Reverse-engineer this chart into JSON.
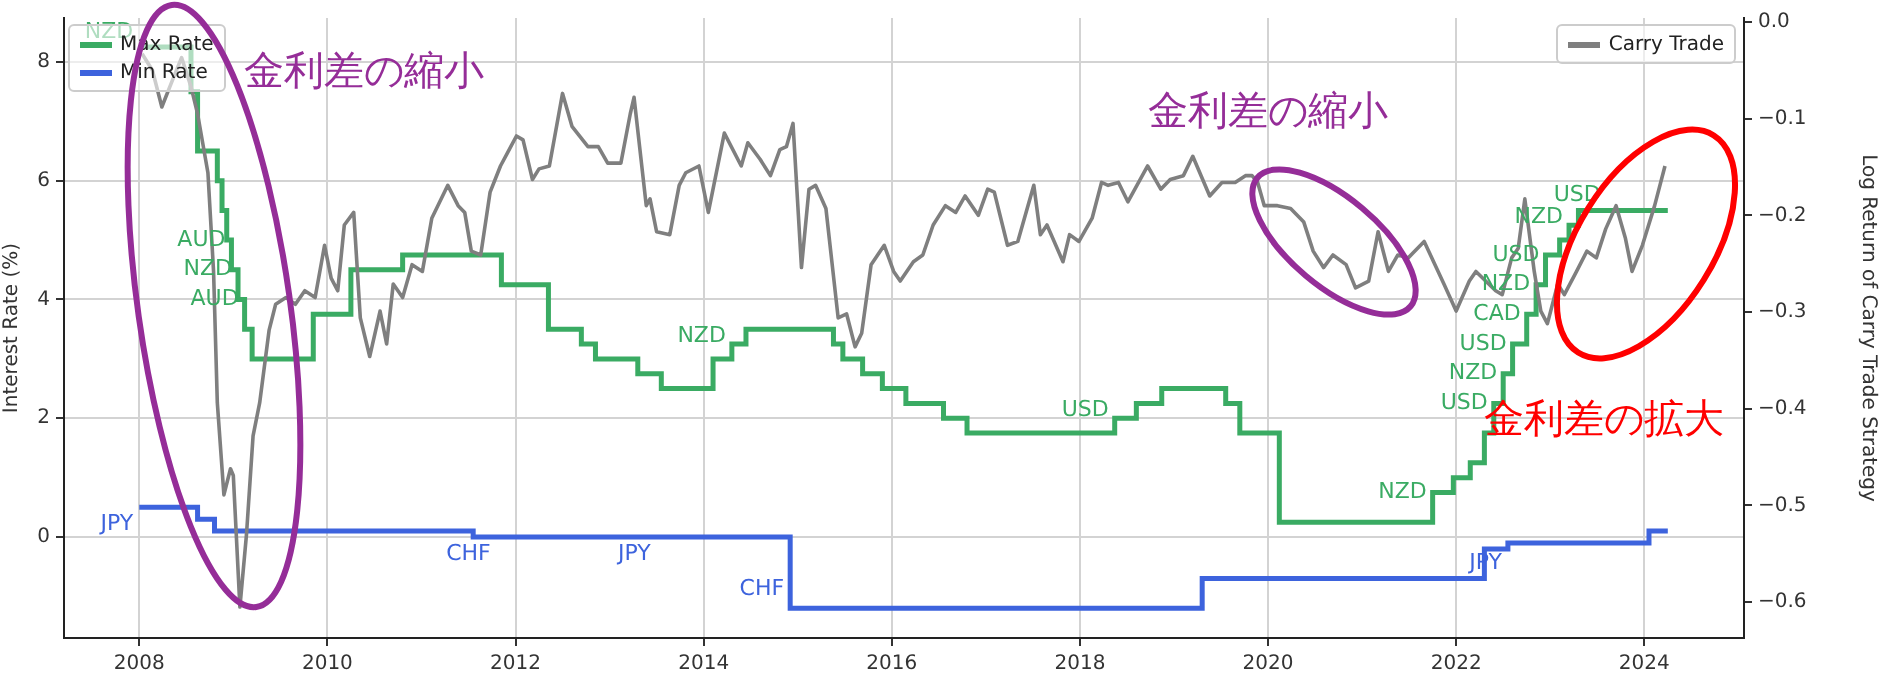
{
  "chart_data": {
    "type": "step",
    "ylabel": "Interest Rate (%)",
    "y2label": "Log Return of Carry Trade Strategy",
    "x": [
      2008.0,
      2008.55,
      2008.62,
      2008.8,
      2008.83,
      2008.88,
      2008.93,
      2008.98,
      2009.05,
      2009.12,
      2009.2,
      2009.85,
      2010.25,
      2010.8,
      2011.55,
      2011.85,
      2012.35,
      2012.7,
      2012.85,
      2013.3,
      2013.55,
      2014.1,
      2014.3,
      2014.45,
      2014.92,
      2015.38,
      2015.48,
      2015.69,
      2015.9,
      2016.15,
      2016.55,
      2016.8,
      2018.37,
      2018.6,
      2018.87,
      2019.3,
      2019.55,
      2019.7,
      2020.12,
      2021.75,
      2021.97,
      2022.15,
      2022.3,
      2022.4,
      2022.5,
      2022.55,
      2022.6,
      2022.75,
      2022.85,
      2022.95,
      2023.1,
      2023.2,
      2023.3,
      2024.05,
      2024.25
    ],
    "series": [
      {
        "name": "Max Rate",
        "color": "#3aab63",
        "values": [
          8.25,
          7.5,
          6.5,
          6.5,
          6.0,
          5.5,
          5.0,
          4.5,
          4.0,
          3.5,
          3.0,
          3.75,
          4.5,
          4.75,
          4.75,
          4.25,
          3.5,
          3.25,
          3.0,
          2.75,
          2.5,
          3.0,
          3.25,
          3.5,
          3.5,
          3.25,
          3.0,
          2.75,
          2.5,
          2.25,
          2.0,
          1.75,
          2.0,
          2.25,
          2.5,
          2.5,
          2.25,
          1.75,
          0.25,
          0.75,
          1.0,
          1.25,
          1.75,
          2.25,
          2.75,
          2.75,
          3.25,
          3.75,
          4.25,
          4.75,
          5.0,
          5.25,
          5.5,
          5.5,
          5.5
        ]
      },
      {
        "name": "Min Rate",
        "color": "#3d63dd",
        "values": [
          0.5,
          0.5,
          0.3,
          0.1,
          0.1,
          0.1,
          0.1,
          0.1,
          0.1,
          0.1,
          0.1,
          0.1,
          0.1,
          0.1,
          0.0,
          0.0,
          0.0,
          0.0,
          0.0,
          0.0,
          0.0,
          0.0,
          0.0,
          0.0,
          -1.2,
          -1.2,
          -1.2,
          -1.2,
          -1.2,
          -1.2,
          -1.2,
          -1.2,
          -1.2,
          -1.2,
          -1.2,
          -0.7,
          -0.7,
          -0.7,
          -0.7,
          -0.7,
          -0.7,
          -0.7,
          -0.2,
          -0.2,
          -0.2,
          -0.1,
          -0.1,
          -0.1,
          -0.1,
          -0.1,
          -0.1,
          -0.1,
          -0.1,
          0.1,
          0.1
        ]
      },
      {
        "name": "Carry Trade",
        "type": "line",
        "axis": "y2",
        "color": "#7f7f7f",
        "x": [
          2008.03,
          2008.14,
          2008.24,
          2008.35,
          2008.45,
          2008.55,
          2008.62,
          2008.73,
          2008.79,
          2008.83,
          2008.9,
          2008.97,
          2009.0,
          2009.07,
          2009.14,
          2009.21,
          2009.28,
          2009.38,
          2009.45,
          2009.56,
          2009.66,
          2009.76,
          2009.87,
          2009.97,
          2010.04,
          2010.11,
          2010.18,
          2010.28,
          2010.35,
          2010.45,
          2010.56,
          2010.63,
          2010.7,
          2010.8,
          2010.9,
          2011.01,
          2011.11,
          2011.28,
          2011.39,
          2011.46,
          2011.53,
          2011.63,
          2011.73,
          2011.84,
          2012.01,
          2012.08,
          2012.18,
          2012.25,
          2012.36,
          2012.5,
          2012.6,
          2012.77,
          2012.88,
          2012.98,
          2013.12,
          2013.22,
          2013.26,
          2013.39,
          2013.43,
          2013.5,
          2013.64,
          2013.74,
          2013.81,
          2013.95,
          2014.05,
          2014.22,
          2014.4,
          2014.47,
          2014.6,
          2014.71,
          2014.81,
          2014.88,
          2014.95,
          2015.04,
          2015.12,
          2015.19,
          2015.3,
          2015.43,
          2015.52,
          2015.61,
          2015.68,
          2015.78,
          2015.92,
          2016.02,
          2016.09,
          2016.23,
          2016.33,
          2016.44,
          2016.57,
          2016.68,
          2016.78,
          2016.92,
          2017.02,
          2017.09,
          2017.23,
          2017.34,
          2017.51,
          2017.58,
          2017.65,
          2017.82,
          2017.89,
          2017.99,
          2018.13,
          2018.23,
          2018.3,
          2018.41,
          2018.51,
          2018.72,
          2018.86,
          2018.96,
          2019.1,
          2019.2,
          2019.38,
          2019.51,
          2019.65,
          2019.76,
          2019.83,
          2019.89,
          2019.96,
          2020.1,
          2020.24,
          2020.38,
          2020.48,
          2020.59,
          2020.69,
          2020.83,
          2020.93,
          2021.07,
          2021.17,
          2021.28,
          2021.38,
          2021.49,
          2021.66,
          2021.76,
          2021.87,
          2022.0,
          2022.14,
          2022.21,
          2022.42,
          2022.49,
          2022.59,
          2022.66,
          2022.73,
          2022.83,
          2022.9,
          2022.97,
          2023.08,
          2023.15,
          2023.28,
          2023.39,
          2023.49,
          2023.59,
          2023.7,
          2023.8,
          2023.87,
          2023.98,
          2024.11,
          2024.22
        ],
        "values": [
          -0.033,
          -0.05,
          -0.088,
          -0.061,
          -0.037,
          -0.067,
          -0.095,
          -0.156,
          -0.258,
          -0.394,
          -0.489,
          -0.462,
          -0.469,
          -0.605,
          -0.53,
          -0.428,
          -0.394,
          -0.319,
          -0.292,
          -0.285,
          -0.292,
          -0.278,
          -0.285,
          -0.231,
          -0.265,
          -0.278,
          -0.21,
          -0.197,
          -0.306,
          -0.346,
          -0.299,
          -0.333,
          -0.271,
          -0.285,
          -0.251,
          -0.258,
          -0.203,
          -0.169,
          -0.19,
          -0.197,
          -0.237,
          -0.241,
          -0.176,
          -0.149,
          -0.118,
          -0.122,
          -0.163,
          -0.152,
          -0.149,
          -0.074,
          -0.108,
          -0.129,
          -0.129,
          -0.146,
          -0.146,
          -0.095,
          -0.078,
          -0.19,
          -0.183,
          -0.217,
          -0.22,
          -0.169,
          -0.156,
          -0.149,
          -0.197,
          -0.115,
          -0.149,
          -0.125,
          -0.142,
          -0.159,
          -0.132,
          -0.129,
          -0.105,
          -0.254,
          -0.173,
          -0.169,
          -0.193,
          -0.306,
          -0.302,
          -0.336,
          -0.322,
          -0.251,
          -0.231,
          -0.258,
          -0.268,
          -0.248,
          -0.241,
          -0.21,
          -0.19,
          -0.197,
          -0.18,
          -0.2,
          -0.173,
          -0.176,
          -0.231,
          -0.227,
          -0.169,
          -0.22,
          -0.21,
          -0.248,
          -0.22,
          -0.227,
          -0.203,
          -0.166,
          -0.169,
          -0.166,
          -0.186,
          -0.149,
          -0.173,
          -0.163,
          -0.159,
          -0.139,
          -0.18,
          -0.166,
          -0.166,
          -0.159,
          -0.159,
          -0.166,
          -0.19,
          -0.19,
          -0.193,
          -0.207,
          -0.237,
          -0.254,
          -0.241,
          -0.251,
          -0.275,
          -0.268,
          -0.217,
          -0.258,
          -0.241,
          -0.244,
          -0.227,
          -0.248,
          -0.271,
          -0.299,
          -0.268,
          -0.258,
          -0.278,
          -0.282,
          -0.244,
          -0.234,
          -0.183,
          -0.258,
          -0.299,
          -0.312,
          -0.271,
          -0.282,
          -0.258,
          -0.237,
          -0.244,
          -0.214,
          -0.19,
          -0.224,
          -0.258,
          -0.231,
          -0.19,
          -0.149
        ]
      }
    ],
    "xlim": [
      2007.2,
      2025.06
    ],
    "xticks": [
      2008,
      2010,
      2012,
      2014,
      2016,
      2018,
      2020,
      2022,
      2024
    ],
    "ylim": [
      -1.7,
      8.74
    ],
    "yticks": [
      0,
      2,
      4,
      6,
      8
    ],
    "y2lim": [
      -0.637,
      0.004
    ],
    "y2ticks": [
      {
        "value": -0.6,
        "label": "−0.6"
      },
      {
        "value": -0.5,
        "label": "−0.5"
      },
      {
        "value": -0.4,
        "label": "−0.4"
      },
      {
        "value": -0.3,
        "label": "−0.3"
      },
      {
        "value": -0.2,
        "label": "−0.2"
      },
      {
        "value": -0.1,
        "label": "−0.1"
      },
      {
        "value": 0,
        "label": "0.0"
      }
    ],
    "grid": true,
    "legend": "top left",
    "annotations": [
      "金利差の縮小",
      "金利差の縮小",
      "金利差の拡大",
      {
        "text": "NZD",
        "x": 2008.0,
        "y": 8.25
      },
      {
        "text": "AUD",
        "x": 2008.98,
        "y": 4.75
      },
      {
        "text": "NZD",
        "x": 2009.05,
        "y": 4.25
      },
      {
        "text": "AUD",
        "x": 2009.12,
        "y": 3.75
      },
      {
        "text": "NZD",
        "x": 2014.3,
        "y": 3.125
      },
      {
        "text": "USD",
        "x": 2018.37,
        "y": 1.875
      },
      {
        "text": "NZD",
        "x": 2021.75,
        "y": 0.5
      },
      {
        "text": "USD",
        "x": 2022.4,
        "y": 2.0
      },
      {
        "text": "NZD",
        "x": 2022.5,
        "y": 2.5
      },
      {
        "text": "USD",
        "x": 2022.6,
        "y": 3.0
      },
      {
        "text": "CAD",
        "x": 2022.75,
        "y": 3.5
      },
      {
        "text": "NZD",
        "x": 2022.85,
        "y": 4.0
      },
      {
        "text": "USD",
        "x": 2022.95,
        "y": 4.5
      },
      {
        "text": "NZD",
        "x": 2023.2,
        "y": 5.125
      },
      {
        "text": "USD",
        "x": 2023.6,
        "y": 5.5
      },
      {
        "text": "JPY",
        "x": 2008.0,
        "y": 0.5
      },
      {
        "text": "CHF",
        "x": 2011.8,
        "y": 0.0
      },
      {
        "text": "JPY",
        "x": 2013.5,
        "y": 0.0
      },
      {
        "text": "CHF",
        "x": 2014.92,
        "y": -0.6
      },
      {
        "text": "JPY",
        "x": 2022.55,
        "y": -0.15
      }
    ]
  }
}
